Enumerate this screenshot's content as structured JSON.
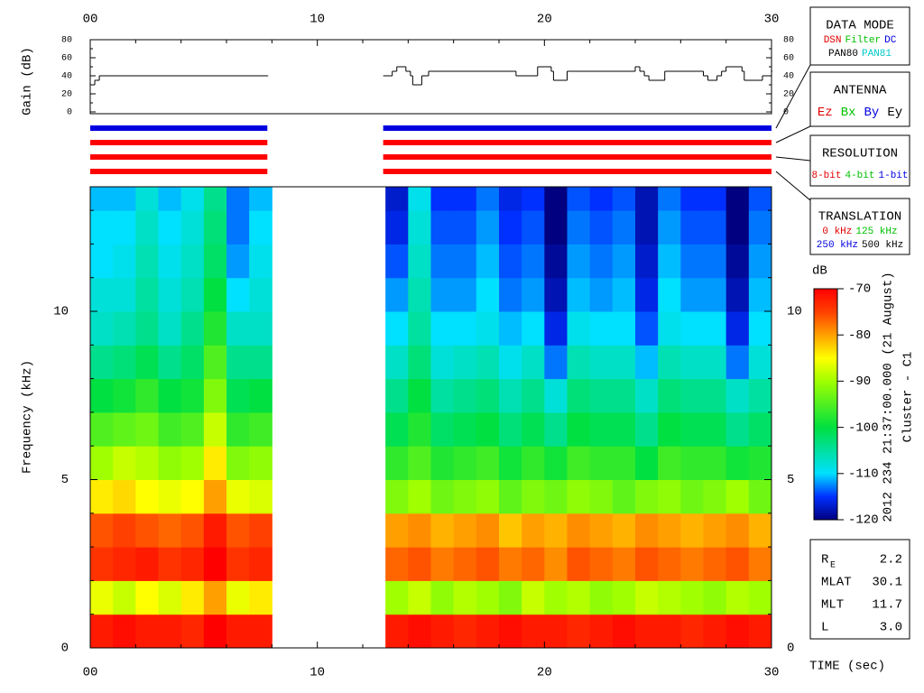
{
  "chart_data": [
    {
      "type": "step",
      "ylabel": "Gain (dB)",
      "color": "#000000",
      "x": [
        0,
        0.2,
        0.4,
        7.8,
        10,
        12.9,
        13.3,
        13.5,
        13.9,
        14.1,
        14.2,
        14.6,
        14.9,
        18.75,
        19.7,
        20.3,
        20.4,
        21.0,
        24.0,
        24.2,
        24.4,
        24.6,
        25.3,
        27.0,
        27.2,
        27.6,
        27.8,
        28.0,
        28.7,
        28.8,
        29.6,
        30
      ],
      "values": [
        30,
        35,
        40,
        40,
        null,
        40,
        45,
        50,
        45,
        40,
        30,
        40,
        45,
        40,
        50,
        45,
        35,
        45,
        50,
        45,
        40,
        35,
        45,
        40,
        35,
        40,
        45,
        50,
        45,
        35,
        40,
        45
      ],
      "xlim": [
        0,
        30
      ],
      "ylim": [
        0,
        80
      ],
      "xticks": [
        {
          "value": 0,
          "label": "00"
        },
        10,
        20,
        30
      ],
      "xminor": [
        2,
        4,
        6,
        8,
        12,
        14,
        16,
        18,
        22,
        24,
        26,
        28
      ],
      "yticks": [
        0,
        20,
        40,
        60,
        80
      ],
      "yminor": [
        10,
        30,
        50,
        70
      ]
    },
    {
      "type": "segments",
      "xlim": [
        0,
        30
      ],
      "series": [
        {
          "color": "#0000e0",
          "segments": [
            [
              0,
              7.8
            ],
            [
              12.9,
              30
            ]
          ]
        },
        {
          "color": "#ff0000",
          "segments": [
            [
              0,
              7.8
            ],
            [
              12.9,
              30
            ]
          ]
        },
        {
          "color": "#ff0000",
          "segments": [
            [
              0,
              7.8
            ],
            [
              12.9,
              30
            ]
          ]
        },
        {
          "color": "#ff0000",
          "segments": [
            [
              0,
              7.8
            ],
            [
              12.9,
              30
            ]
          ]
        }
      ]
    },
    {
      "type": "heatmap",
      "ylabel": "Frequency (kHz)",
      "xlabel": "TIME (sec)",
      "x_edges": [
        0,
        1,
        2,
        3,
        4,
        5,
        6,
        7,
        8,
        9,
        10,
        11,
        12,
        13,
        14,
        15,
        16,
        17,
        18,
        19,
        20,
        21,
        22,
        23,
        24,
        25,
        26,
        27,
        28,
        29,
        30
      ],
      "y_edges": [
        0,
        1,
        2,
        3,
        4,
        5,
        6,
        7,
        8,
        9,
        10,
        11,
        12,
        13,
        14
      ],
      "z": [
        [
          -72,
          -71,
          -72,
          -72,
          -73,
          -70,
          -72,
          -72,
          null,
          null,
          null,
          null,
          null,
          -72,
          -71,
          -72,
          -73,
          -72,
          -71,
          -72,
          -72,
          -73,
          -72,
          -71,
          -72,
          -72,
          -73,
          -72,
          -71,
          -72
        ],
        [
          -86,
          -88,
          -85,
          -87,
          -84,
          -80,
          -86,
          -84,
          null,
          null,
          null,
          null,
          null,
          -90,
          -88,
          -91,
          -89,
          -90,
          -92,
          -88,
          -90,
          -89,
          -91,
          -90,
          -88,
          -89,
          -90,
          -91,
          -89,
          -90
        ],
        [
          -74,
          -73,
          -72,
          -74,
          -73,
          -70,
          -74,
          -73,
          null,
          null,
          null,
          null,
          null,
          -77,
          -76,
          -78,
          -77,
          -76,
          -78,
          -77,
          -79,
          -76,
          -77,
          -78,
          -76,
          -77,
          -78,
          -77,
          -76,
          -78
        ],
        [
          -76,
          -75,
          -76,
          -77,
          -76,
          -72,
          -76,
          -75,
          null,
          null,
          null,
          null,
          null,
          -80,
          -79,
          -81,
          -80,
          -79,
          -82,
          -80,
          -81,
          -79,
          -80,
          -81,
          -79,
          -80,
          -81,
          -80,
          -79,
          -81
        ],
        [
          -84,
          -83,
          -85,
          -86,
          -85,
          -80,
          -86,
          -87,
          null,
          null,
          null,
          null,
          null,
          -92,
          -90,
          -93,
          -92,
          -91,
          -94,
          -92,
          -93,
          -91,
          -92,
          -94,
          -92,
          -91,
          -93,
          -92,
          -90,
          -93
        ],
        [
          -90,
          -88,
          -89,
          -91,
          -90,
          -84,
          -92,
          -91,
          null,
          null,
          null,
          null,
          null,
          -97,
          -95,
          -98,
          -97,
          -96,
          -99,
          -97,
          -99,
          -96,
          -97,
          -97,
          -100,
          -96,
          -97,
          -97,
          -99,
          -98
        ],
        [
          -95,
          -94,
          -93,
          -96,
          -95,
          -88,
          -97,
          -96,
          null,
          null,
          null,
          null,
          null,
          -101,
          -98,
          -102,
          -101,
          -100,
          -103,
          -101,
          -104,
          -100,
          -101,
          -101,
          -104,
          -100,
          -101,
          -101,
          -104,
          -102
        ],
        [
          -100,
          -99,
          -97,
          -100,
          -99,
          -92,
          -101,
          -100,
          null,
          null,
          null,
          null,
          null,
          -104,
          -100,
          -105,
          -104,
          -103,
          -106,
          -104,
          -108,
          -103,
          -104,
          -104,
          -107,
          -103,
          -104,
          -104,
          -107,
          -105
        ],
        [
          -104,
          -103,
          -101,
          -104,
          -102,
          -95,
          -104,
          -104,
          null,
          null,
          null,
          null,
          null,
          -107,
          -103,
          -108,
          -107,
          -106,
          -109,
          -107,
          -113,
          -106,
          -107,
          -107,
          -111,
          -106,
          -107,
          -107,
          -113,
          -108
        ],
        [
          -107,
          -106,
          -104,
          -107,
          -104,
          -98,
          -107,
          -107,
          null,
          null,
          null,
          null,
          null,
          -110,
          -105,
          -110,
          -110,
          -109,
          -111,
          -110,
          -116,
          -109,
          -110,
          -110,
          -114,
          -109,
          -110,
          -110,
          -116,
          -110
        ],
        [
          -108,
          -108,
          -105,
          -108,
          -106,
          -100,
          -110,
          -108,
          null,
          null,
          null,
          null,
          null,
          -112,
          -106,
          -112,
          -112,
          -110,
          -113,
          -112,
          -118,
          -111,
          -112,
          -111,
          -116,
          -110,
          -112,
          -112,
          -118,
          -111
        ],
        [
          -110,
          -109,
          -106,
          -109,
          -107,
          -102,
          -112,
          -109,
          null,
          null,
          null,
          null,
          null,
          -114,
          -107,
          -113,
          -113,
          -111,
          -114,
          -113,
          -119,
          -112,
          -113,
          -112,
          -117,
          -111,
          -113,
          -113,
          -119,
          -112
        ],
        [
          -110,
          -110,
          -107,
          -110,
          -108,
          -103,
          -113,
          -110,
          null,
          null,
          null,
          null,
          null,
          -116,
          -108,
          -114,
          -114,
          -112,
          -115,
          -114,
          -120,
          -113,
          -114,
          -113,
          -118,
          -112,
          -114,
          -114,
          -120,
          -113
        ],
        [
          -111,
          -111,
          -108,
          -111,
          -109,
          -104,
          -113,
          -111,
          null,
          null,
          null,
          null,
          null,
          -117,
          -109,
          -115,
          -115,
          -113,
          -116,
          -115,
          -120,
          -114,
          -115,
          -114,
          -118,
          -113,
          -115,
          -115,
          -120,
          -114
        ]
      ],
      "xlim": [
        0,
        30
      ],
      "ylim": [
        0,
        13.7
      ],
      "xticks": [
        {
          "value": 0,
          "label": "00"
        },
        10,
        20,
        30
      ],
      "xminor": [
        2,
        4,
        6,
        8,
        12,
        14,
        16,
        18,
        22,
        24,
        26,
        28
      ],
      "yticks": [
        0,
        5,
        10
      ],
      "yminor": [
        1,
        2,
        3,
        4,
        6,
        7,
        8,
        9,
        11,
        12,
        13
      ],
      "zlim": [
        -120,
        -70
      ],
      "zticks": [
        -70,
        -80,
        -90,
        -100,
        -110,
        -120
      ],
      "colorbar_title": "dB",
      "colorscale": [
        [
          -120,
          "#000080"
        ],
        [
          -115,
          "#0030ff"
        ],
        [
          -110,
          "#00e0ff"
        ],
        [
          -100,
          "#00e040"
        ],
        [
          -90,
          "#a0ff00"
        ],
        [
          -85,
          "#ffff00"
        ],
        [
          -80,
          "#ffa000"
        ],
        [
          -75,
          "#ff4000"
        ],
        [
          -70,
          "#ff0000"
        ]
      ]
    }
  ],
  "side_text": [
    "2012 234 21:37:00.000 (21 August)",
    "Cluster - C1"
  ],
  "legend_boxes": [
    {
      "title": "DATA MODE",
      "rows": [
        [
          {
            "text": "DSN",
            "color": "#e00000"
          },
          {
            "text": "Filter",
            "color": "#00c000"
          },
          {
            "text": "DC",
            "color": "#0000e0"
          }
        ],
        [
          {
            "text": "PAN80",
            "color": "#000000"
          },
          {
            "text": "PAN81",
            "color": "#00c8c8"
          }
        ]
      ]
    },
    {
      "title": "ANTENNA",
      "rows": [
        [
          {
            "text": "Ez",
            "color": "#e00000"
          },
          {
            "text": "Bx",
            "color": "#00c000"
          },
          {
            "text": "By",
            "color": "#0000e0"
          },
          {
            "text": "Ey",
            "color": "#000000"
          }
        ]
      ]
    },
    {
      "title": "RESOLUTION",
      "rows": [
        [
          {
            "text": "8-bit",
            "color": "#e00000"
          },
          {
            "text": "4-bit",
            "color": "#00c000"
          },
          {
            "text": "1-bit",
            "color": "#0000e0"
          }
        ]
      ]
    },
    {
      "title": "TRANSLATION",
      "rows": [
        [
          {
            "text": "0 kHz",
            "color": "#e00000"
          },
          {
            "text": "125 kHz",
            "color": "#00c000"
          }
        ],
        [
          {
            "text": "250 kHz",
            "color": "#0000e0"
          },
          {
            "text": "500 kHz",
            "color": "#000000"
          }
        ]
      ]
    }
  ],
  "info": [
    {
      "label": "R",
      "sub": "E",
      "value": "2.2"
    },
    {
      "label": "MLAT",
      "value": "30.1"
    },
    {
      "label": "MLT",
      "value": "11.7"
    },
    {
      "label": "L",
      "value": "3.0"
    }
  ]
}
